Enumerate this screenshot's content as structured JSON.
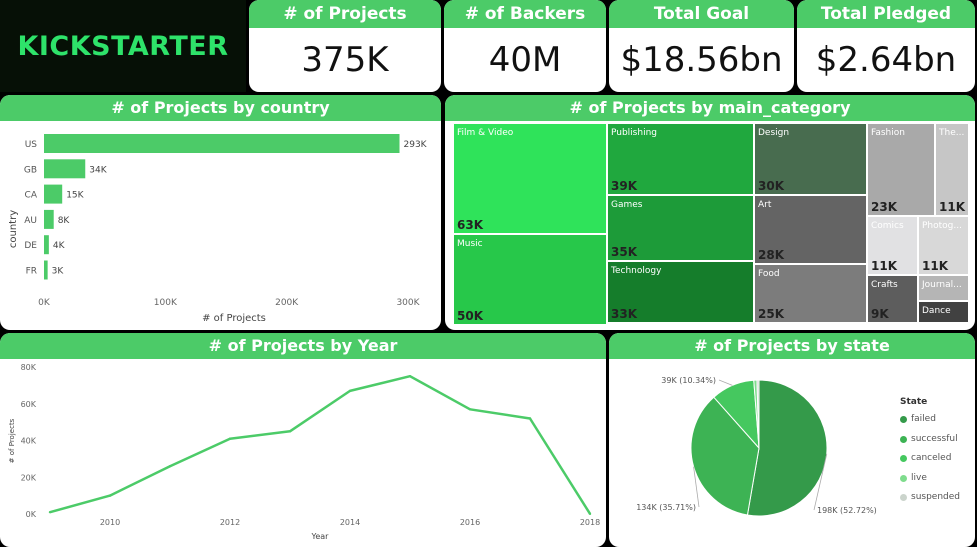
{
  "logo": {
    "text": "KICKSTARTER"
  },
  "kpis": [
    {
      "title": "# of Projects",
      "value": "375K"
    },
    {
      "title": "# of Backers",
      "value": "40M"
    },
    {
      "title": "Total Goal",
      "value": "$18.56bn"
    },
    {
      "title": "Total Pledged",
      "value": "$2.64bn"
    }
  ],
  "country_chart": {
    "title": "# of Projects by country",
    "type": "bar",
    "orientation": "horizontal",
    "categories": [
      "US",
      "GB",
      "CA",
      "AU",
      "DE",
      "FR"
    ],
    "values": [
      293,
      34,
      15,
      8,
      4,
      3
    ],
    "data_labels": [
      "293K",
      "34K",
      "15K",
      "8K",
      "4K",
      "3K"
    ],
    "xlabel": "# of Projects",
    "ylabel": "country",
    "xlim": [
      0,
      300
    ],
    "ticks": [
      "0K",
      "100K",
      "200K",
      "300K"
    ],
    "color": "#4ccb68"
  },
  "category_treemap": {
    "title": "# of Projects by main_category",
    "type": "treemap",
    "cells": [
      {
        "name": "Film & Video",
        "label": "63K",
        "color": "#2fe35a"
      },
      {
        "name": "Music",
        "label": "50K",
        "color": "#27c84a"
      },
      {
        "name": "Publishing",
        "label": "39K",
        "color": "#20a83e"
      },
      {
        "name": "Games",
        "label": "35K",
        "color": "#1d9b39"
      },
      {
        "name": "Technology",
        "label": "33K",
        "color": "#157d2b"
      },
      {
        "name": "Design",
        "label": "30K",
        "color": "#486c4f"
      },
      {
        "name": "Art",
        "label": "28K",
        "color": "#646464"
      },
      {
        "name": "Food",
        "label": "25K",
        "color": "#7c7c7c"
      },
      {
        "name": "Fashion",
        "label": "23K",
        "color": "#a9a9a9"
      },
      {
        "name": "The...",
        "label": "11K",
        "color": "#c6c6c6"
      },
      {
        "name": "Comics",
        "label": "11K",
        "color": "#e1e1e3"
      },
      {
        "name": "Photog...",
        "label": "11K",
        "color": "#d8d8d8"
      },
      {
        "name": "Crafts",
        "label": "9K",
        "color": "#5d5d5d"
      },
      {
        "name": "Journal...",
        "label": "",
        "color": "#b5b5b5"
      },
      {
        "name": "Dance",
        "label": "",
        "color": "#414141"
      }
    ]
  },
  "year_chart": {
    "title": "# of Projects by Year",
    "type": "line",
    "x": [
      2009,
      2010,
      2011,
      2012,
      2013,
      2014,
      2015,
      2016,
      2017,
      2018
    ],
    "values": [
      1,
      10,
      26,
      41,
      45,
      67,
      75,
      57,
      52,
      0.1
    ],
    "xlabel": "Year",
    "ylabel": "# of Projects",
    "xlim": [
      2009,
      2018
    ],
    "ylim": [
      0,
      80
    ],
    "yticks": [
      "0K",
      "20K",
      "40K",
      "60K",
      "80K"
    ],
    "xticks": [
      "2010",
      "2012",
      "2014",
      "2016",
      "2018"
    ],
    "color": "#4ccb68"
  },
  "state_chart": {
    "title": "# of Projects by state",
    "type": "pie",
    "categories": [
      "failed",
      "successful",
      "canceled",
      "live",
      "suspended"
    ],
    "values": [
      52.72,
      35.71,
      10.34,
      0.75,
      0.48
    ],
    "colors": [
      "#349a4a",
      "#3db354",
      "#45c85f",
      "#7fdc8d",
      "#cbd4cc"
    ],
    "data_labels": [
      "198K (52.72%)",
      "134K (35.71%)",
      "39K (10.34%)",
      "",
      ""
    ],
    "legend_title": "State",
    "legend_position": "right"
  }
}
